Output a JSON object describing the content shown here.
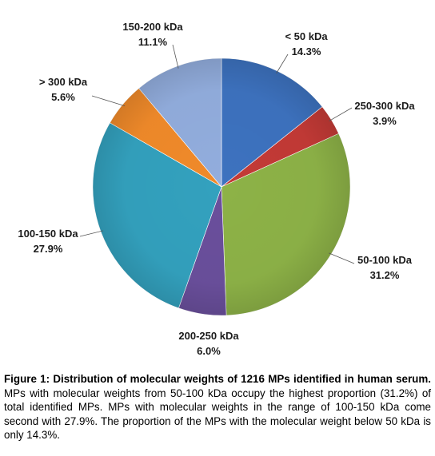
{
  "chart_data": {
    "type": "pie",
    "start_angle_deg": 0,
    "direction": "clockwise",
    "slices": [
      {
        "label": "< 50 kDa",
        "pct_text": "14.3%",
        "value": 14.3,
        "color": "#3D72BF"
      },
      {
        "label": "250-300 kDa",
        "pct_text": "3.9%",
        "value": 3.9,
        "color": "#C33A36"
      },
      {
        "label": "50-100 kDa",
        "pct_text": "31.2%",
        "value": 31.2,
        "color": "#8DB247"
      },
      {
        "label": "200-250 kDa",
        "pct_text": "6.0%",
        "value": 6.0,
        "color": "#6A4F9C"
      },
      {
        "label": "100-150 kDa",
        "pct_text": "27.9%",
        "value": 27.9,
        "color": "#33A1BE"
      },
      {
        "label": "> 300 kDa",
        "pct_text": "5.6%",
        "value": 5.6,
        "color": "#F08A2A"
      },
      {
        "label": "150-200 kDa",
        "pct_text": "11.1%",
        "value": 11.1,
        "color": "#92ADDD"
      }
    ]
  },
  "caption": {
    "bold": "Figure 1: Distribution of molecular weights of 1216 MPs identified in human serum.",
    "text": " MPs with molecular weights from 50-100 kDa occupy the highest proportion (31.2%) of total identified MPs. MPs with molecular weights in the range of 100-150 kDa come second with 27.9%. The proportion of the MPs with the molecular weight below 50 kDa is only 14.3%."
  }
}
